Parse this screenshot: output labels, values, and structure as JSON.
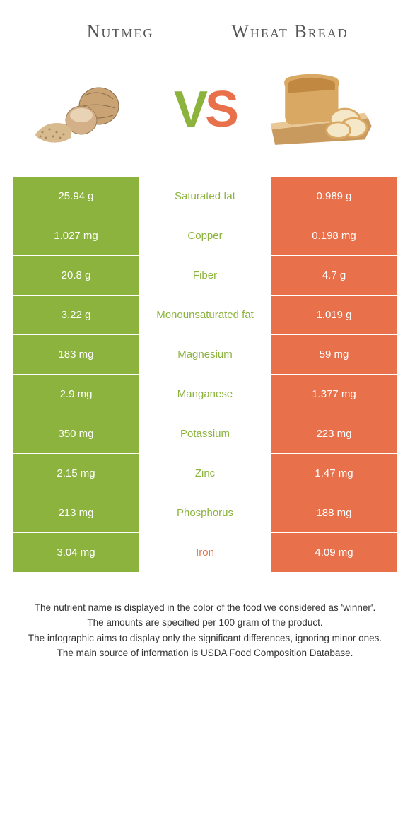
{
  "colors": {
    "green": "#8bb33d",
    "orange": "#e8714c",
    "text_dark": "#555555",
    "white": "#ffffff"
  },
  "header": {
    "left_title": "Nutmeg",
    "right_title": "Wheat Bread"
  },
  "vs": {
    "v": "V",
    "s": "S"
  },
  "nutrients": [
    {
      "name": "Saturated fat",
      "left": "25.94 g",
      "right": "0.989 g",
      "winner": "left"
    },
    {
      "name": "Copper",
      "left": "1.027 mg",
      "right": "0.198 mg",
      "winner": "left"
    },
    {
      "name": "Fiber",
      "left": "20.8 g",
      "right": "4.7 g",
      "winner": "left"
    },
    {
      "name": "Monounsaturated fat",
      "left": "3.22 g",
      "right": "1.019 g",
      "winner": "left"
    },
    {
      "name": "Magnesium",
      "left": "183 mg",
      "right": "59 mg",
      "winner": "left"
    },
    {
      "name": "Manganese",
      "left": "2.9 mg",
      "right": "1.377 mg",
      "winner": "left"
    },
    {
      "name": "Potassium",
      "left": "350 mg",
      "right": "223 mg",
      "winner": "left"
    },
    {
      "name": "Zinc",
      "left": "2.15 mg",
      "right": "1.47 mg",
      "winner": "left"
    },
    {
      "name": "Phosphorus",
      "left": "213 mg",
      "right": "188 mg",
      "winner": "left"
    },
    {
      "name": "Iron",
      "left": "3.04 mg",
      "right": "4.09 mg",
      "winner": "right"
    }
  ],
  "footer": {
    "l1": "The nutrient name is displayed in the color of the food we considered as 'winner'.",
    "l2": "The amounts are specified per 100 gram of the product.",
    "l3": "The infographic aims to display only the significant differences, ignoring minor ones.",
    "l4": "The main source of information is USDA Food Composition Database."
  }
}
